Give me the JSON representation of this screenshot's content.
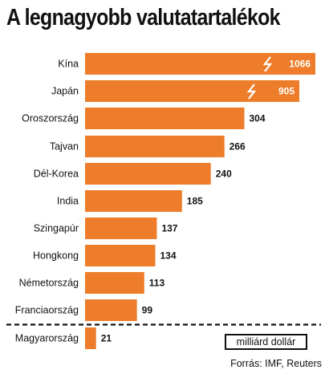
{
  "colors": {
    "bar": "#ee7d2b",
    "text": "#111111",
    "break_marker": "#ffffff"
  },
  "unit_label": "milliárd dollár",
  "source": "Forrás: IMF, Reuters",
  "chart_data": {
    "type": "bar",
    "orientation": "horizontal",
    "title": "A legnagyobb valutatartalékok",
    "categories": [
      "Kína",
      "Japán",
      "Oroszország",
      "Tajvan",
      "Dél-Korea",
      "India",
      "Szingapúr",
      "Hongkong",
      "Németország",
      "Franciaország",
      "Magyarország"
    ],
    "values": [
      1066,
      905,
      304,
      266,
      240,
      185,
      137,
      134,
      113,
      99,
      21
    ],
    "value_labels": [
      "1066",
      "905",
      "304",
      "266",
      "240",
      "185",
      "137",
      "134",
      "113",
      "99",
      "21"
    ],
    "broken_bars": [
      "Kína",
      "Japán"
    ],
    "separator_before": "Magyarország",
    "grid": false,
    "legend": "none"
  }
}
